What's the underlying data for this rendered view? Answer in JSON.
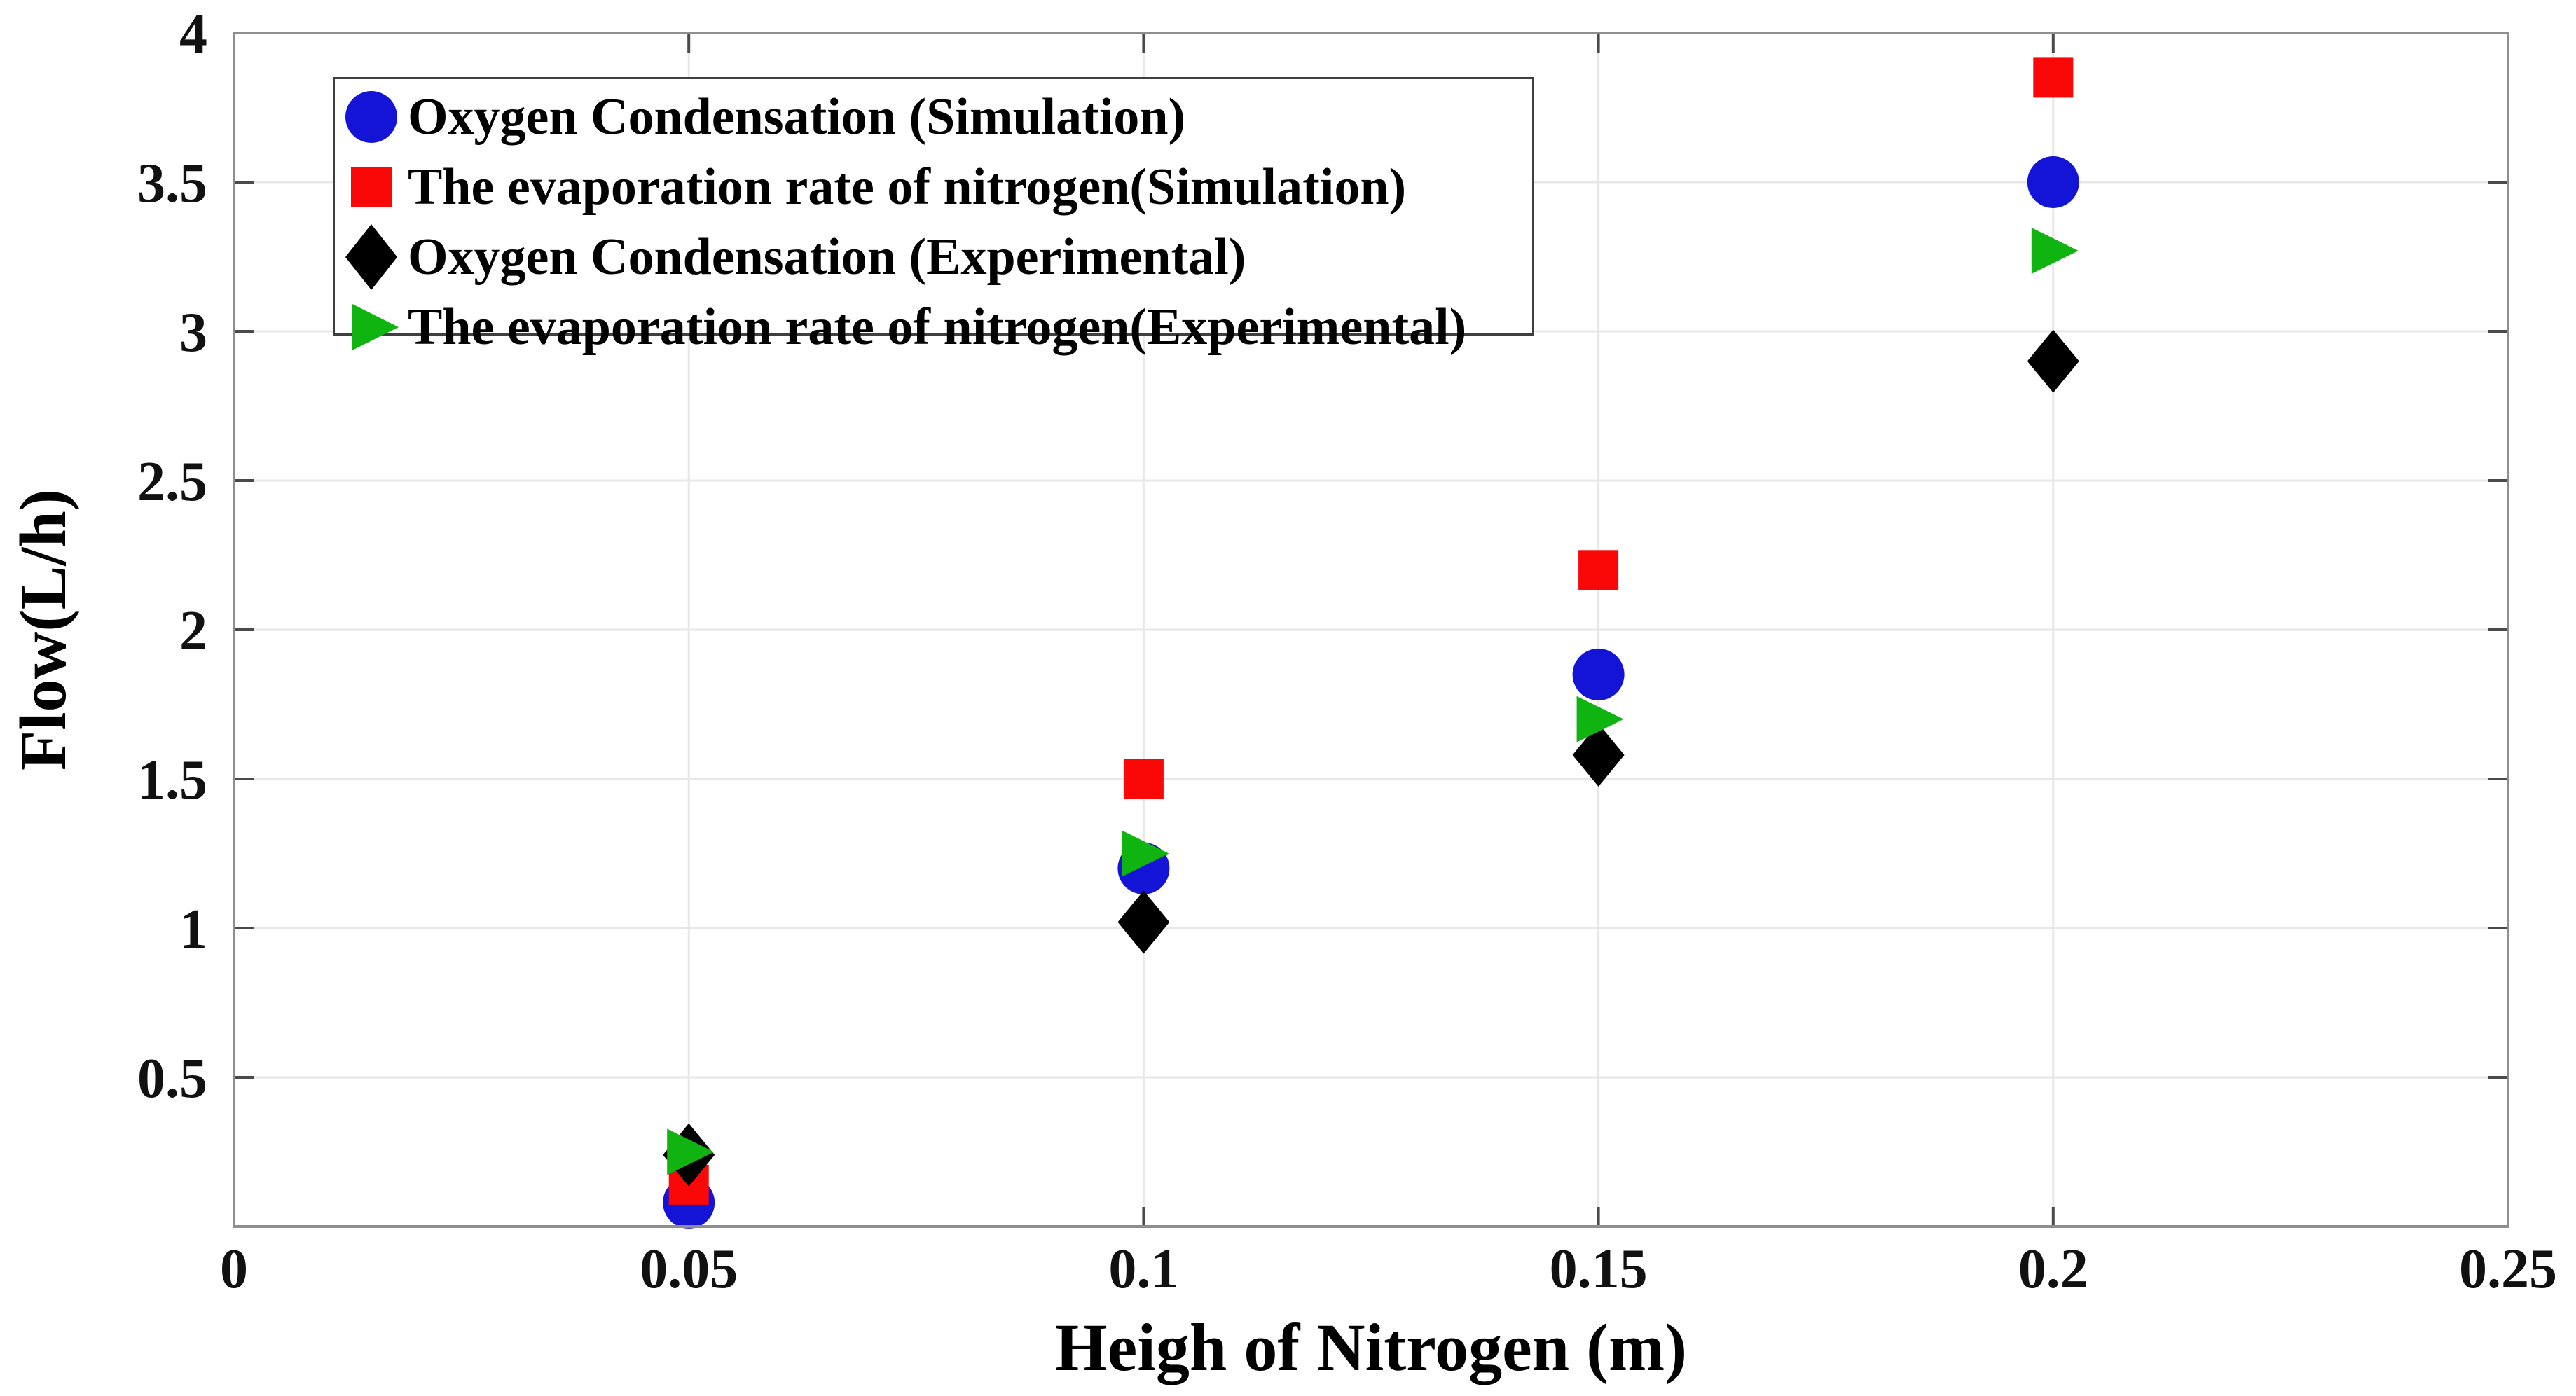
{
  "figure": {
    "background": "#ffffff"
  },
  "chart_data": {
    "type": "scatter",
    "title": "",
    "xlabel": "Heigh of Nitrogen (m)",
    "ylabel": "Flow(L/h)",
    "xlim": [
      0,
      0.25
    ],
    "ylim": [
      0,
      4
    ],
    "xticks": [
      0,
      0.05,
      0.1,
      0.15,
      0.2,
      0.25
    ],
    "xtick_labels": [
      "0",
      "0.05",
      "0.1",
      "0.15",
      "0.2",
      "0.25"
    ],
    "yticks": [
      0.5,
      1,
      1.5,
      2,
      2.5,
      3,
      3.5,
      4
    ],
    "ytick_labels": [
      "0.5",
      "1",
      "1.5",
      "2",
      "2.5",
      "3",
      "3.5",
      "4"
    ],
    "grid": true,
    "legend": {
      "position": "top-left-inside",
      "border_color": "#3f3f3f",
      "background": "#ffffff"
    },
    "x": [
      0.05,
      0.1,
      0.15,
      0.2
    ],
    "series": [
      {
        "name": "Oxygen Condensation (Simulation)",
        "marker": "circle",
        "color": "#1414d6",
        "values": [
          0.08,
          1.2,
          1.85,
          3.5
        ]
      },
      {
        "name": "The evaporation rate of nitrogen(Simulation)",
        "marker": "square",
        "color": "#fa0707",
        "values": [
          0.14,
          1.5,
          2.2,
          3.85
        ]
      },
      {
        "name": "Oxygen Condensation (Experimental)",
        "marker": "diamond",
        "color": "#000000",
        "values": [
          0.24,
          1.02,
          1.58,
          2.9
        ]
      },
      {
        "name": "The evaporation rate of nitrogen(Experimental)",
        "marker": "triangle-right",
        "color": "#10b410",
        "values": [
          0.25,
          1.25,
          1.7,
          3.27
        ]
      }
    ],
    "colors": {
      "grid": "#e7e7e7",
      "axis_box": "#8e8e8e",
      "tick": "#4a4a4a",
      "text": "#111111"
    }
  }
}
